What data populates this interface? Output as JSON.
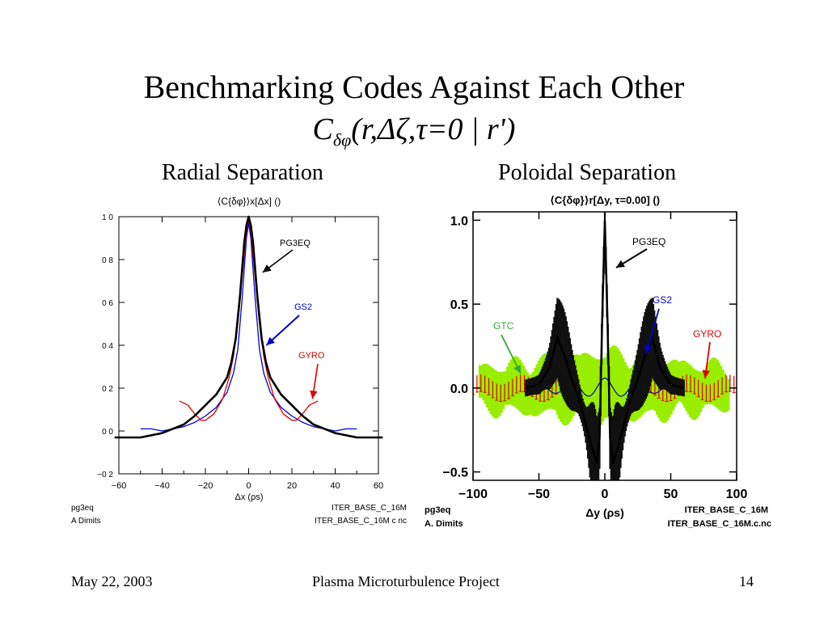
{
  "slide": {
    "title": "Benchmarking Codes Against Each Other",
    "formula_main": "C",
    "formula_sub": "δφ",
    "formula_rest": "(r,Δζ,τ=0 | r')",
    "left_heading": "Radial Separation",
    "right_heading": "Poloidal Separation"
  },
  "footer": {
    "date": "May  22, 2003",
    "project": "Plasma Microturbulence Project",
    "page": "14"
  },
  "colors": {
    "pg3eq": "#000000",
    "gs2": "#0000cc",
    "gyro": "#dd0000",
    "gtc": "#99ee00",
    "gtc_label": "#33aa33"
  },
  "chart_data": [
    {
      "type": "line",
      "title": "⟨C{δφ}⟩x[Δx] ()",
      "xlabel": "Δx (ρs)",
      "ylabel": "",
      "xlim": [
        -60,
        60
      ],
      "ylim": [
        -0.2,
        1.0
      ],
      "xticks": [
        "−60",
        "−40",
        "−20",
        "0",
        "20",
        "40",
        "60"
      ],
      "yticks": [
        "1 0",
        "0 8",
        "0 6",
        "0 4",
        "0 2",
        "0 0",
        "−0 2"
      ],
      "footnotes": {
        "left1": "pg3eq",
        "left2": "A  Dimits",
        "right1": "ITER_BASE_C_16M",
        "right2": "ITER_BASE_C_16M c nc"
      },
      "series": [
        {
          "name": "PG3EQ",
          "x": [
            -62,
            -50,
            -40,
            -30,
            -25,
            -20,
            -15,
            -10,
            -8,
            -6,
            -4,
            -2,
            -1,
            0,
            1,
            2,
            4,
            6,
            8,
            10,
            15,
            20,
            25,
            30,
            40,
            50,
            62
          ],
          "y": [
            -0.03,
            -0.03,
            -0.01,
            0.03,
            0.07,
            0.12,
            0.17,
            0.25,
            0.32,
            0.43,
            0.63,
            0.88,
            0.96,
            1.0,
            0.96,
            0.88,
            0.63,
            0.43,
            0.32,
            0.25,
            0.17,
            0.12,
            0.07,
            0.03,
            -0.01,
            -0.03,
            -0.03
          ]
        },
        {
          "name": "GS2",
          "x": [
            -50,
            -45,
            -40,
            -35,
            -30,
            -25,
            -20,
            -15,
            -10,
            -7,
            -5,
            -3,
            -1,
            0,
            1,
            3,
            5,
            7,
            10,
            15,
            20,
            25,
            30,
            35,
            40,
            45,
            50
          ],
          "y": [
            0.01,
            0.01,
            0.0,
            0.01,
            0.02,
            0.04,
            0.07,
            0.11,
            0.18,
            0.27,
            0.38,
            0.62,
            0.9,
            0.97,
            0.9,
            0.62,
            0.38,
            0.27,
            0.18,
            0.11,
            0.07,
            0.04,
            0.02,
            0.01,
            0.0,
            0.01,
            0.01
          ]
        },
        {
          "name": "GYRO",
          "x": [
            -32,
            -28,
            -25,
            -22,
            -20,
            -16,
            -12,
            -9,
            -7,
            -5,
            -3,
            -1,
            0,
            1,
            3,
            5,
            7,
            9,
            12,
            16,
            20,
            22,
            25,
            28,
            32
          ],
          "y": [
            0.14,
            0.12,
            0.08,
            0.05,
            0.05,
            0.08,
            0.15,
            0.25,
            0.35,
            0.5,
            0.72,
            0.93,
            0.99,
            0.93,
            0.72,
            0.5,
            0.35,
            0.25,
            0.15,
            0.08,
            0.05,
            0.05,
            0.08,
            0.12,
            0.14
          ]
        }
      ],
      "annotations": [
        {
          "text": "PG3EQ",
          "target_x": 7,
          "target_y": 0.73
        },
        {
          "text": "GS2",
          "target_x": 8,
          "target_y": 0.4
        },
        {
          "text": "GYRO",
          "target_x": 30,
          "target_y": 0.14
        }
      ]
    },
    {
      "type": "line",
      "title": "⟨C{δφ}⟩r[Δy, τ=0.00] ()",
      "xlabel": "Δy (ρs)",
      "ylabel": "",
      "xlim": [
        -100,
        100
      ],
      "ylim": [
        -0.55,
        1.05
      ],
      "xticks": [
        "−100",
        "−50",
        "0",
        "50",
        "100"
      ],
      "yticks": [
        "1.0",
        "0.5",
        "0.0",
        "−0.5"
      ],
      "footnotes": {
        "left1": "pg3eq",
        "left2": "A. Dimits",
        "right1": "ITER_BASE_C_16M",
        "right2": "ITER_BASE_C_16M.c.nc"
      },
      "series": [
        {
          "name": "GTC",
          "center": [
            0.0,
            0.0,
            0.0
          ],
          "amplitude": [
            0.12,
            0.18,
            0.25
          ],
          "range": [
            -95,
            95
          ]
        },
        {
          "name": "GYRO",
          "range": [
            -100,
            100
          ],
          "amplitude": 0.05
        },
        {
          "name": "GS2",
          "range": [
            -60,
            60
          ],
          "amplitude": 0.08
        },
        {
          "name": "PG3EQ",
          "x": [
            -60,
            -50,
            -42,
            -36,
            -30,
            -25,
            -20,
            -15,
            -10,
            -6,
            -4,
            -2,
            0,
            2,
            4,
            6,
            10,
            15,
            20,
            25,
            30,
            36,
            42,
            50,
            60
          ],
          "y": [
            0.0,
            0.02,
            0.12,
            0.3,
            0.18,
            0.05,
            -0.05,
            -0.2,
            -0.35,
            -0.45,
            -0.3,
            0.4,
            1.0,
            0.4,
            -0.3,
            -0.45,
            -0.35,
            -0.2,
            -0.05,
            0.05,
            0.18,
            0.3,
            0.12,
            0.02,
            0.0
          ]
        }
      ],
      "annotations": [
        {
          "text": "PG3EQ"
        },
        {
          "text": "GS2"
        },
        {
          "text": "GTC"
        },
        {
          "text": "GYRO"
        }
      ]
    }
  ]
}
